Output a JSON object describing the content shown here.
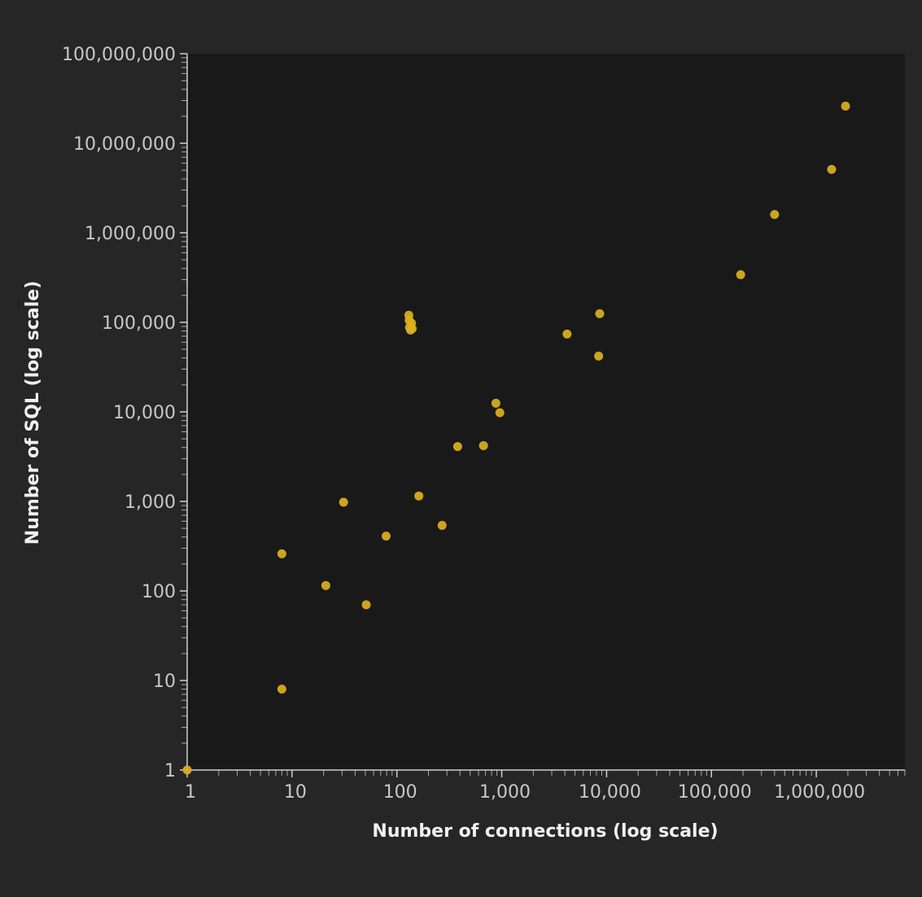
{
  "chart_data": {
    "type": "scatter",
    "title": "",
    "xlabel": "Number of connections (log scale)",
    "ylabel": "Number of SQL (log scale)",
    "xscale": "log",
    "yscale": "log",
    "xlim": [
      1,
      7000000
    ],
    "ylim": [
      1,
      100000000
    ],
    "x_ticks": [
      {
        "value": 1,
        "label": "1"
      },
      {
        "value": 10,
        "label": "10"
      },
      {
        "value": 100,
        "label": "100"
      },
      {
        "value": 1000,
        "label": "1,000"
      },
      {
        "value": 10000,
        "label": "10,000"
      },
      {
        "value": 100000,
        "label": "100,000"
      },
      {
        "value": 1000000,
        "label": "1,000,000"
      }
    ],
    "y_ticks": [
      {
        "value": 1,
        "label": "1"
      },
      {
        "value": 10,
        "label": "10"
      },
      {
        "value": 100,
        "label": "100"
      },
      {
        "value": 1000,
        "label": "1,000"
      },
      {
        "value": 10000,
        "label": "10,000"
      },
      {
        "value": 100000,
        "label": "100,000"
      },
      {
        "value": 1000000,
        "label": "1,000,000"
      },
      {
        "value": 10000000,
        "label": "10,000,000"
      },
      {
        "value": 100000000,
        "label": "100,000,000"
      }
    ],
    "grid": false,
    "legend": "none",
    "colors": {
      "page_background": "#262626",
      "plot_background": "#191919",
      "point": "#dcb01e"
    },
    "points": [
      {
        "x": 1,
        "y": 1
      },
      {
        "x": 8,
        "y": 8
      },
      {
        "x": 8,
        "y": 260
      },
      {
        "x": 21,
        "y": 115
      },
      {
        "x": 31,
        "y": 980
      },
      {
        "x": 51,
        "y": 70
      },
      {
        "x": 79,
        "y": 410
      },
      {
        "x": 130,
        "y": 120000
      },
      {
        "x": 131,
        "y": 105000
      },
      {
        "x": 132,
        "y": 88000
      },
      {
        "x": 135,
        "y": 82000
      },
      {
        "x": 138,
        "y": 98000
      },
      {
        "x": 140,
        "y": 85000
      },
      {
        "x": 162,
        "y": 1150
      },
      {
        "x": 270,
        "y": 540
      },
      {
        "x": 380,
        "y": 4100
      },
      {
        "x": 670,
        "y": 4200
      },
      {
        "x": 880,
        "y": 12500
      },
      {
        "x": 960,
        "y": 9800
      },
      {
        "x": 4200,
        "y": 74000
      },
      {
        "x": 8400,
        "y": 42000
      },
      {
        "x": 8600,
        "y": 125000
      },
      {
        "x": 190000,
        "y": 340000
      },
      {
        "x": 400000,
        "y": 1600000
      },
      {
        "x": 1400000,
        "y": 5100000
      },
      {
        "x": 1900000,
        "y": 26000000
      }
    ]
  }
}
